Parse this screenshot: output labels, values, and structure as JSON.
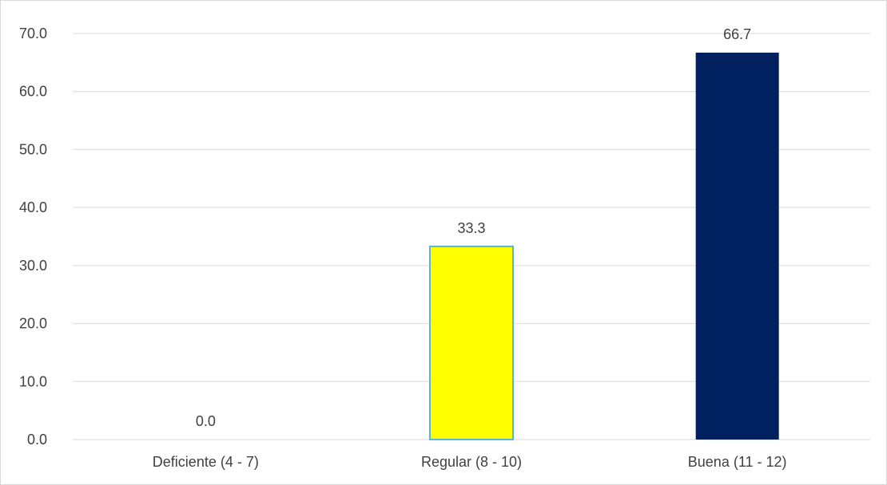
{
  "chart_data": {
    "type": "bar",
    "categories": [
      "Deficiente (4 - 7)",
      "Regular (8 - 10)",
      "Buena (11 - 12)"
    ],
    "values": [
      0.0,
      33.3,
      66.7
    ],
    "data_labels": [
      "0.0",
      "33.3",
      "66.7"
    ],
    "bar_colors": [
      "#ffffff",
      "#ffff00",
      "#002060"
    ],
    "bar_border_colors": [
      "none",
      "#5bb4d8",
      "none"
    ],
    "ylim": [
      0,
      70
    ],
    "yticks": [
      0,
      10,
      20,
      30,
      40,
      50,
      60,
      70
    ],
    "ytick_labels": [
      "0.0",
      "10.0",
      "20.0",
      "30.0",
      "40.0",
      "50.0",
      "60.0",
      "70.0"
    ],
    "grid": true,
    "gridline_color": "#d9d9d9",
    "axis_text_color": "#404040",
    "legend": "none",
    "title": "",
    "xlabel": "",
    "ylabel": ""
  }
}
